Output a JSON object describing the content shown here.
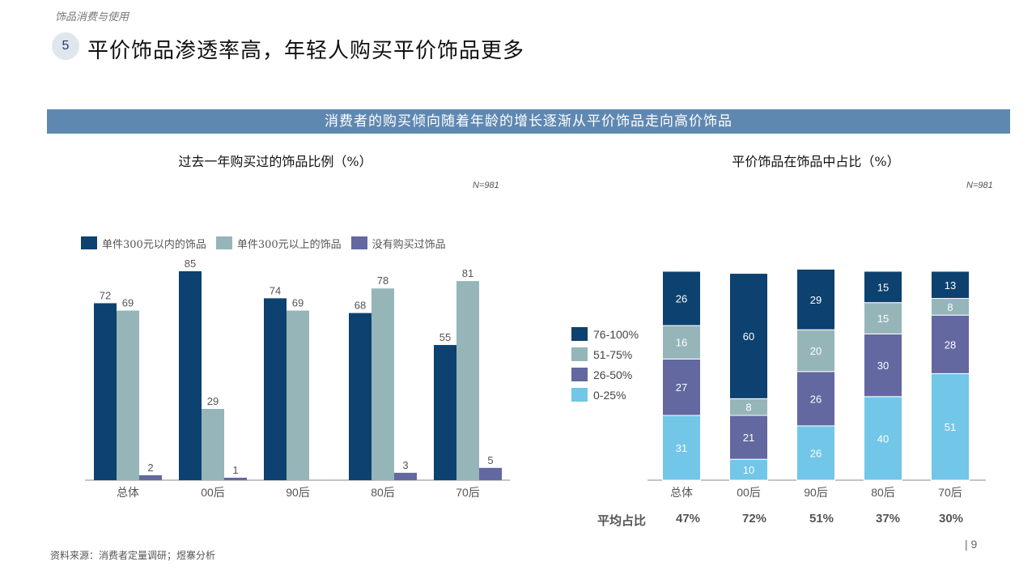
{
  "header": {
    "section_tag": "饰品消费与使用",
    "page_number_badge": "5",
    "title": "平价饰品渗透率高，年轻人购买平价饰品更多"
  },
  "banner": "消费者的购买倾向随着年龄的增长逐渐从平价饰品走向高价饰品",
  "left_chart_header": {
    "title": "过去一年购买过的饰品比例（%）",
    "sample_note": "N=981"
  },
  "right_chart_header": {
    "title": "平价饰品在饰品中占比（%）",
    "sample_note": "N=981"
  },
  "average_row": {
    "label": "平均占比",
    "values": [
      "47%",
      "72%",
      "51%",
      "37%",
      "30%"
    ]
  },
  "footer": {
    "source": "资料来源：消费者定量调研；煜寨分析",
    "page": "| 9"
  },
  "chart_data": [
    {
      "type": "bar",
      "categories": [
        "总体",
        "00后",
        "90后",
        "80后",
        "70后"
      ],
      "series": [
        {
          "name": "单件300元以内的饰品",
          "values": [
            72,
            85,
            74,
            68,
            55
          ],
          "color": "#0d416f"
        },
        {
          "name": "单件300元以上的饰品",
          "values": [
            69,
            29,
            69,
            78,
            81
          ],
          "color": "#95b5b9"
        },
        {
          "name": "没有购买过饰品",
          "values": [
            2,
            1,
            null,
            3,
            5
          ],
          "color": "#6368a0"
        }
      ],
      "ylim": [
        0,
        85
      ],
      "legend": "top"
    },
    {
      "type": "bar",
      "stacked": true,
      "categories": [
        "总体",
        "00后",
        "90后",
        "80后",
        "70后"
      ],
      "series": [
        {
          "name": "0-25%",
          "values": [
            31,
            10,
            26,
            40,
            51
          ],
          "color": "#72c6e7"
        },
        {
          "name": "26-50%",
          "values": [
            27,
            21,
            26,
            30,
            28
          ],
          "color": "#6368a0"
        },
        {
          "name": "51-75%",
          "values": [
            16,
            8,
            20,
            15,
            8
          ],
          "color": "#95b5b9"
        },
        {
          "name": "76-100%",
          "values": [
            26,
            60,
            29,
            15,
            13
          ],
          "color": "#0d416f"
        }
      ],
      "ylim": [
        0,
        100
      ],
      "legend": "left"
    }
  ]
}
